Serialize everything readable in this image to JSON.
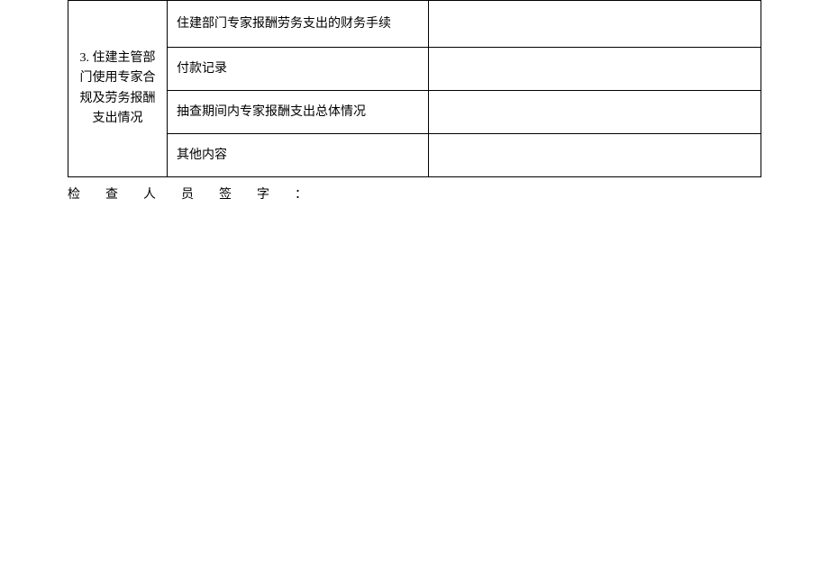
{
  "table": {
    "category": "3. 住建主管部门使用专家合规及劳务报酬支出情况",
    "rows": [
      {
        "item": "住建部门专家报酬劳务支出的财务手续",
        "value": ""
      },
      {
        "item": "付款记录",
        "value": ""
      },
      {
        "item": "抽查期间内专家报酬支出总体情况",
        "value": ""
      },
      {
        "item": "其他内容",
        "value": ""
      }
    ]
  },
  "signature_label": "检查人员签字：",
  "style": {
    "background_color": "#ffffff",
    "border_color": "#000000",
    "text_color": "#000000",
    "font_size": 14,
    "letter_spacing_signature": 28
  }
}
